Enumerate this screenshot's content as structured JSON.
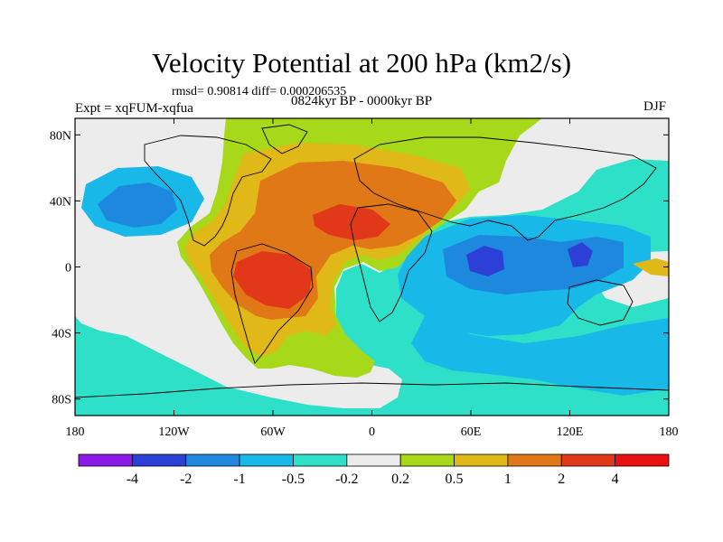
{
  "title": "Velocity Potential at 200 hPa (km2/s)",
  "stats_line": "rmsd= 0.90814 diff= 0.000206535",
  "experiment": "Expt = xqFUM-xqfua",
  "period": "0824kyr BP - 0000kyr BP",
  "season": "DJF",
  "map": {
    "projection": "cylindrical equidistant",
    "lon_range": [
      -180,
      180
    ],
    "lat_range": [
      -90,
      90
    ],
    "x_ticks": [
      {
        "lon": -180,
        "label": "180"
      },
      {
        "lon": -120,
        "label": "120W"
      },
      {
        "lon": -60,
        "label": "60W"
      },
      {
        "lon": 0,
        "label": "0"
      },
      {
        "lon": 60,
        "label": "60E"
      },
      {
        "lon": 120,
        "label": "120E"
      },
      {
        "lon": 180,
        "label": "180"
      }
    ],
    "y_ticks": [
      {
        "lat": 80,
        "label": "80N"
      },
      {
        "lat": 40,
        "label": "40N"
      },
      {
        "lat": 0,
        "label": "0"
      },
      {
        "lat": -40,
        "label": "40S"
      },
      {
        "lat": -80,
        "label": "80S"
      }
    ]
  },
  "colorbar": {
    "levels": [
      "-4",
      "-2",
      "-1",
      "-0.5",
      "-0.2",
      "0.2",
      "0.5",
      "1",
      "2",
      "4"
    ],
    "colors": [
      "#8a1be6",
      "#2c3fd6",
      "#1e88de",
      "#18b8e8",
      "#2fe0c8",
      "#ececec",
      "#a8d81a",
      "#e0b818",
      "#e07818",
      "#e03818",
      "#e81010"
    ]
  },
  "colors": {
    "background": "#ffffff",
    "ocean_default": "#2fe0c8"
  }
}
